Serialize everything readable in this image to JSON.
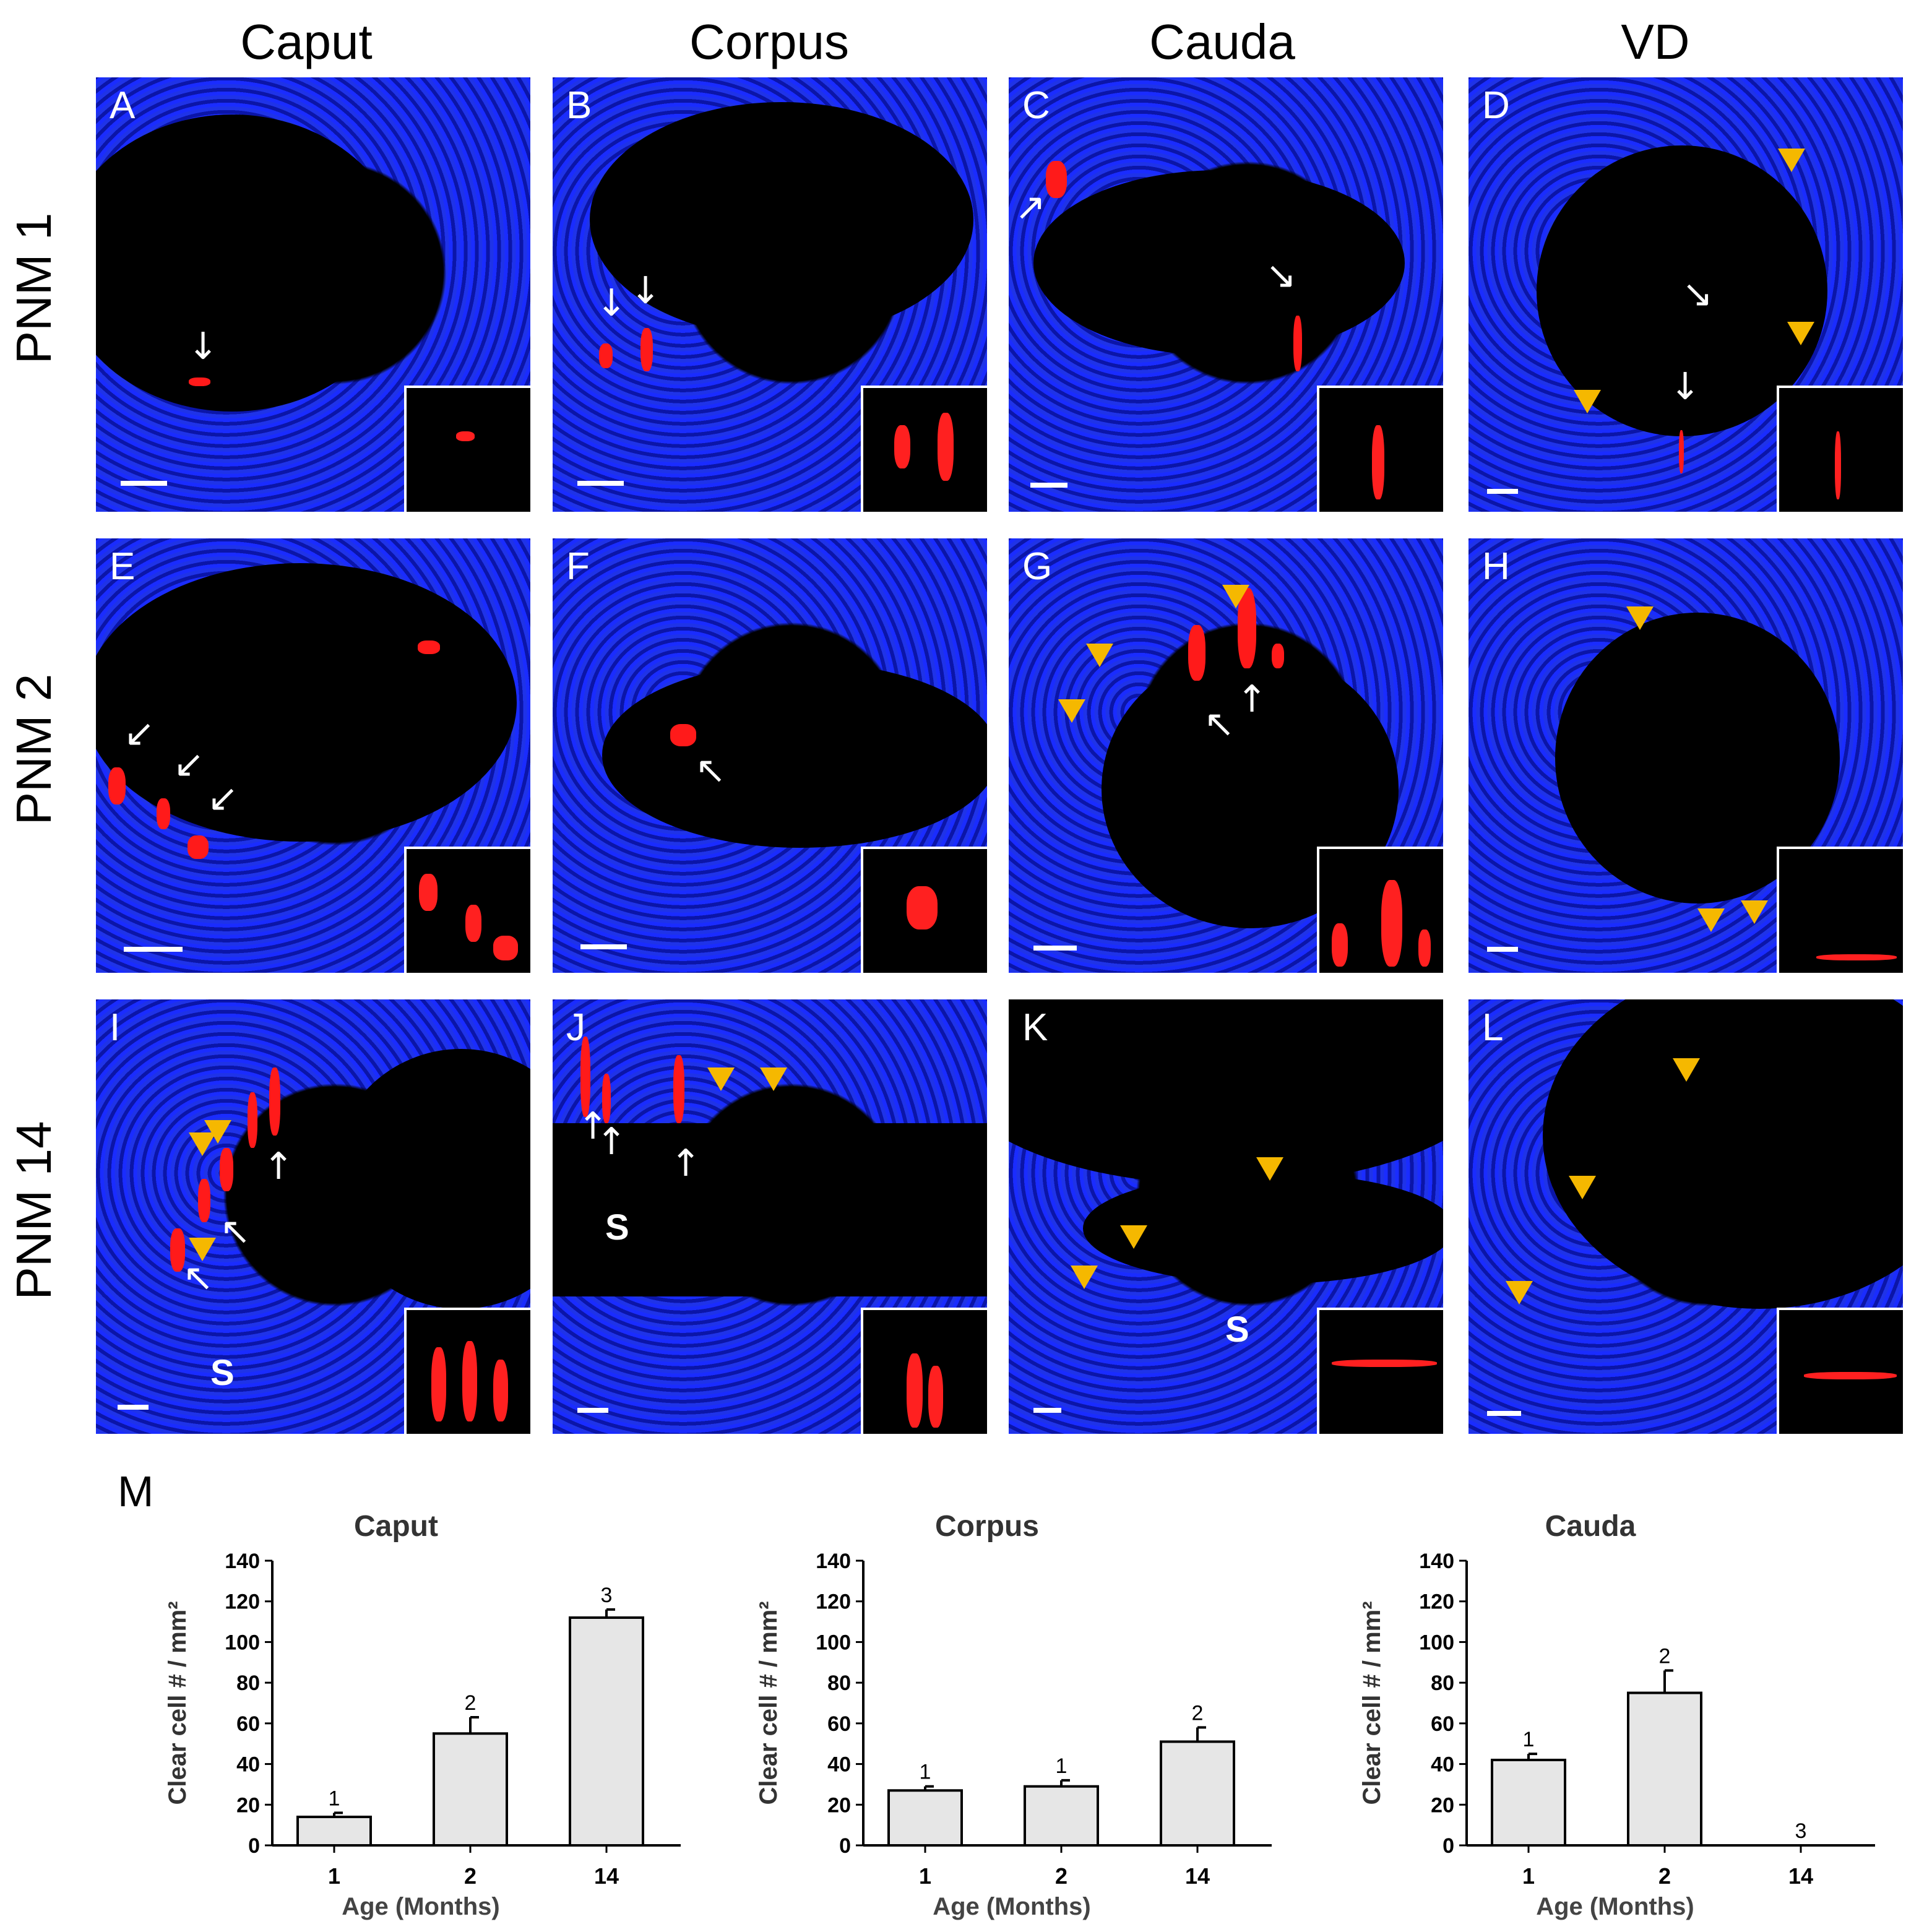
{
  "columns": [
    "Caput",
    "Corpus",
    "Cauda",
    "VD"
  ],
  "rows": [
    "PNM 1",
    "PNM 2",
    "PNM 14"
  ],
  "panels": [
    "A",
    "B",
    "C",
    "D",
    "E",
    "F",
    "G",
    "H",
    "I",
    "J",
    "K",
    "L"
  ],
  "stroma_label": "S",
  "chart_panel_label": "M",
  "colors": {
    "nuclei": "#1a2cff",
    "stain": "#ff1a1a",
    "arrowhead": "#f5b800",
    "bar_fill": "#e6e6e6"
  },
  "chart_data": [
    {
      "type": "bar",
      "title": "Caput",
      "xlabel": "Age (Months)",
      "ylabel": "Clear cell # / mm²",
      "categories": [
        "1",
        "2",
        "14"
      ],
      "values": [
        14,
        55,
        112
      ],
      "errors": [
        2,
        8,
        4
      ],
      "significance": [
        "1",
        "2",
        "3"
      ],
      "ylim": [
        0,
        140
      ],
      "yticks": [
        0,
        20,
        40,
        60,
        80,
        100,
        120,
        140
      ]
    },
    {
      "type": "bar",
      "title": "Corpus",
      "xlabel": "Age (Months)",
      "ylabel": "Clear cell # / mm²",
      "categories": [
        "1",
        "2",
        "14"
      ],
      "values": [
        27,
        29,
        51
      ],
      "errors": [
        2,
        3,
        7
      ],
      "significance": [
        "1",
        "1",
        "2"
      ],
      "ylim": [
        0,
        140
      ],
      "yticks": [
        0,
        20,
        40,
        60,
        80,
        100,
        120,
        140
      ]
    },
    {
      "type": "bar",
      "title": "Cauda",
      "xlabel": "Age (Months)",
      "ylabel": "Clear cell # / mm²",
      "categories": [
        "1",
        "2",
        "14"
      ],
      "values": [
        42,
        75,
        0
      ],
      "errors": [
        3,
        11,
        0
      ],
      "significance": [
        "1",
        "2",
        "3"
      ],
      "ylim": [
        0,
        140
      ],
      "yticks": [
        0,
        20,
        40,
        60,
        80,
        100,
        120,
        140
      ]
    }
  ]
}
